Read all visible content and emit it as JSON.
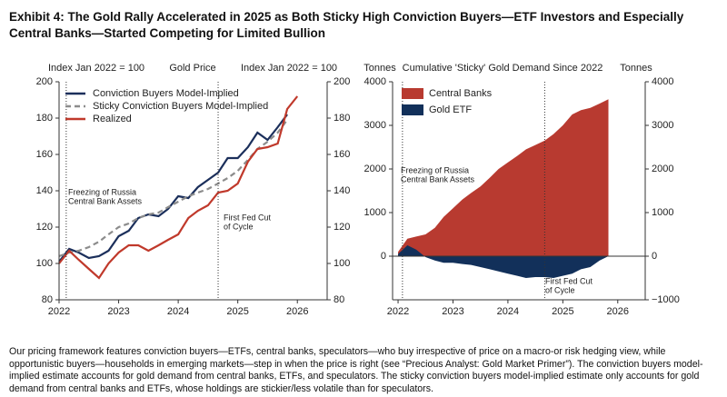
{
  "title": "Exhibit 4: The Gold Rally Accelerated in 2025 as Both Sticky High Conviction Buyers—ETF Investors and Especially Central Banks—Started Competing for Limited Bullion",
  "note": "Our pricing framework features conviction buyers—ETFs, central banks, speculators—who buy irrespective of price on a macro-or risk hedging view, while opportunistic buyers—households in emerging markets—step in when the price is right (see “Precious Analyst: Gold Market Primer”). The conviction buyers model-implied estimate accounts for gold demand from central banks, ETFs, and speculators. The sticky conviction buyers model-implied estimate only accounts for gold demand from central banks and ETFs, whose holdings are stickier/less volatile than for speculators.",
  "chart_data": [
    {
      "type": "line",
      "title": "Gold Price",
      "y_label": "Index Jan 2022 = 100",
      "y2_label": "Index Jan 2022 = 100",
      "x": [
        2022,
        2022.17,
        2022.33,
        2022.5,
        2022.67,
        2022.83,
        2023,
        2023.17,
        2023.33,
        2023.5,
        2023.67,
        2023.83,
        2024,
        2024.17,
        2024.33,
        2024.5,
        2024.67,
        2024.83,
        2025,
        2025.17,
        2025.33,
        2025.5,
        2025.67,
        2025.83,
        2026
      ],
      "xlim": [
        2022,
        2026.5
      ],
      "xticks": [
        2022,
        2023,
        2024,
        2025,
        2026
      ],
      "ylim": [
        80,
        200
      ],
      "yticks": [
        80,
        100,
        120,
        140,
        160,
        180,
        200
      ],
      "y2lim": [
        80,
        200
      ],
      "y2ticks": [
        80,
        100,
        120,
        140,
        160,
        180,
        200
      ],
      "legend": "upper left",
      "series": [
        {
          "name": "Conviction Buyers Model-Implied",
          "color": "#1b2f5b",
          "values": [
            101,
            108,
            106,
            103,
            104,
            107,
            115,
            118,
            125,
            127,
            126,
            130,
            137,
            136,
            142,
            146,
            150,
            158,
            158,
            164,
            172,
            168,
            175,
            182,
            null
          ]
        },
        {
          "name": "Sticky Conviction Buyers Model-Implied",
          "color": "#8c8c8c",
          "dash": true,
          "values": [
            104,
            106,
            107,
            109,
            112,
            116,
            120,
            122,
            125,
            127,
            128,
            131,
            134,
            137,
            139,
            141,
            144,
            147,
            151,
            157,
            163,
            167,
            172,
            179,
            null
          ]
        },
        {
          "name": "Realized",
          "color": "#c0392b",
          "values": [
            100,
            107,
            102,
            97,
            92,
            100,
            106,
            110,
            110,
            107,
            110,
            113,
            116,
            125,
            129,
            132,
            139,
            140,
            144,
            156,
            163,
            164,
            166,
            185,
            192
          ]
        }
      ],
      "annotations": [
        {
          "x": 2022.12,
          "text": [
            "Freezing of Russia",
            "Central Bank Assets"
          ]
        },
        {
          "x": 2024.67,
          "text": [
            "First Fed Cut",
            "of Cycle"
          ]
        }
      ]
    },
    {
      "type": "area",
      "title": "Cumulative 'Sticky' Gold Demand Since 2022",
      "y_label": "Tonnes",
      "y2_label": "Tonnes",
      "x": [
        2022,
        2022.17,
        2022.33,
        2022.5,
        2022.67,
        2022.83,
        2023,
        2023.17,
        2023.33,
        2023.5,
        2023.67,
        2023.83,
        2024,
        2024.17,
        2024.33,
        2024.5,
        2024.67,
        2024.83,
        2025,
        2025.17,
        2025.33,
        2025.5,
        2025.67,
        2025.83
      ],
      "xlim": [
        2021.9,
        2026.5
      ],
      "xticks": [
        2022,
        2023,
        2024,
        2025,
        2026
      ],
      "ylim": [
        -1000,
        4000
      ],
      "yticks": [
        0,
        1000,
        2000,
        3000,
        4000
      ],
      "y2lim": [
        -1000,
        4000
      ],
      "y2ticks": [
        {
          "value": -1000,
          "label": "−1000"
        },
        0,
        1000,
        2000,
        3000,
        4000
      ],
      "legend": "upper left",
      "series": [
        {
          "name": "Central Banks",
          "color": "#b83a30",
          "values": [
            100,
            400,
            450,
            500,
            650,
            900,
            1100,
            1300,
            1450,
            1600,
            1800,
            2000,
            2150,
            2300,
            2450,
            2550,
            2650,
            2800,
            3000,
            3250,
            3350,
            3400,
            3500,
            3600
          ]
        },
        {
          "name": "Gold ETF",
          "color": "#12305a",
          "values": [
            50,
            250,
            150,
            -20,
            -100,
            -150,
            -150,
            -180,
            -200,
            -250,
            -300,
            -350,
            -400,
            -450,
            -500,
            -480,
            -480,
            -500,
            -450,
            -400,
            -300,
            -250,
            -100,
            0
          ]
        }
      ],
      "annotations": [
        {
          "x": 2022.08,
          "text": [
            "Freezing of Russia",
            "Central Bank Assets"
          ]
        },
        {
          "x": 2024.67,
          "text": [
            "First Fed Cut",
            "of Cycle"
          ]
        }
      ]
    }
  ]
}
